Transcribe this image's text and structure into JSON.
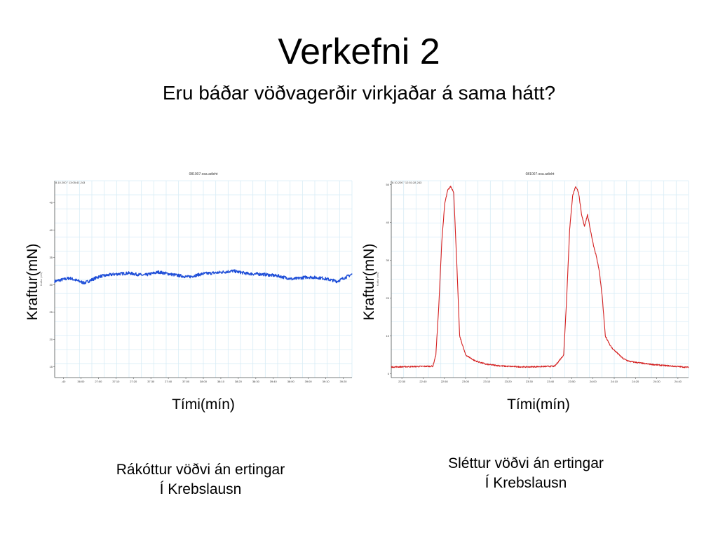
{
  "slide": {
    "title": "Verkefni 2",
    "subtitle": "Eru báðar vöðvagerðir virkjaðar á sama hátt?"
  },
  "colors": {
    "left_series": "#1f4fd8",
    "right_series": "#d42020",
    "grid": "#d8ecf6",
    "axis": "#555555"
  },
  "captions": {
    "left": [
      "Rákóttur vöðvi án ertingar",
      "Í Krebslausn"
    ],
    "right": [
      "Sléttur vöðvi án ertingar",
      "Í Krebslausn"
    ]
  },
  "chart_data": [
    {
      "type": "line",
      "file_title": "081007-ssa.adicht",
      "timestamp": "8.10.2007 13:05:40,243",
      "ylabel": "Kraftur(mN)",
      "xlabel": "Tími(mín)",
      "inner_ylabel": "Kraftur (mN)",
      "ylim": [
        13,
        49
      ],
      "yticks": [
        "15",
        "20",
        "25",
        "30",
        "35",
        "40",
        "45"
      ],
      "xticks": [
        "-40",
        "36:00",
        "27:00",
        "37:10",
        "27:20",
        "37:30",
        "27:40",
        "37:00",
        "38:00",
        "38:10",
        "38:20",
        "38:30",
        "39:40",
        "38:00",
        "39:00",
        "39:10",
        "39:20"
      ],
      "series": [
        {
          "x": [
            0,
            5,
            10,
            15,
            20,
            25,
            30,
            35,
            40,
            45,
            50,
            55,
            60,
            65,
            70,
            75,
            80,
            85,
            90,
            95,
            100
          ],
          "y": [
            30.6,
            31.2,
            30.3,
            31.5,
            31.9,
            32.1,
            31.7,
            32.3,
            31.8,
            31.4,
            32.0,
            32.2,
            32.5,
            32.0,
            31.9,
            31.6,
            31.0,
            31.4,
            31.2,
            30.6,
            31.9
          ]
        }
      ]
    },
    {
      "type": "line",
      "file_title": "081007-ssa.adicht",
      "timestamp": "8.10.2007 12:51:28,243",
      "ylabel": "Kraftur(mN)",
      "xlabel": "Tími(mín)",
      "inner_ylabel": "Kraftur (mN)",
      "ylim": [
        -1,
        51
      ],
      "yticks": [
        "0",
        "10",
        "20",
        "30",
        "40",
        "50"
      ],
      "xticks": [
        "22:30",
        "22:40",
        "22:50",
        "23:00",
        "23:10",
        "23:20",
        "23:30",
        "23:40",
        "23:50",
        "24:00",
        "24:10",
        "24:20",
        "24:30",
        "24:40"
      ],
      "series": [
        {
          "x": [
            0,
            14,
            15,
            16,
            17,
            18,
            19,
            20,
            21,
            22,
            23,
            25,
            28,
            32,
            38,
            45,
            50,
            55,
            58,
            59,
            60,
            61,
            62,
            63,
            64,
            65,
            66,
            67,
            68,
            69,
            70,
            71,
            72,
            74,
            76,
            78,
            80,
            85,
            90,
            95,
            100
          ],
          "y": [
            1.8,
            2.0,
            5.0,
            18.0,
            35.0,
            45.0,
            48.5,
            49.5,
            48.0,
            30.0,
            10.0,
            5.0,
            3.5,
            2.5,
            2.0,
            1.8,
            1.9,
            2.0,
            5.0,
            20.0,
            38.0,
            47.0,
            49.5,
            48.0,
            42.0,
            39.0,
            42.0,
            38.0,
            34.0,
            31.0,
            27.0,
            20.0,
            10.0,
            7.0,
            5.5,
            4.0,
            3.3,
            2.7,
            2.3,
            2.0,
            1.7
          ]
        }
      ]
    }
  ]
}
